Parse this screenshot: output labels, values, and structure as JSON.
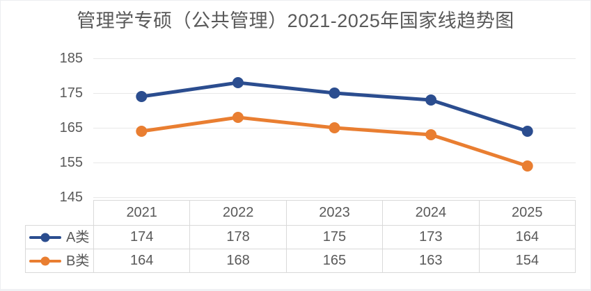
{
  "chart_data": {
    "type": "line",
    "title": "管理学专硕（公共管理）2021-2025年国家线趋势图",
    "categories": [
      "2021",
      "2022",
      "2023",
      "2024",
      "2025"
    ],
    "series": [
      {
        "name": "A类",
        "values": [
          174,
          178,
          175,
          173,
          164
        ],
        "color": "#2B4D8F"
      },
      {
        "name": "B类",
        "values": [
          164,
          168,
          165,
          163,
          154
        ],
        "color": "#E97E31"
      }
    ],
    "xlabel": "",
    "ylabel": "",
    "ylim": [
      145,
      185
    ],
    "yticks": [
      185,
      175,
      165,
      155,
      145
    ],
    "grid": "horizontal",
    "legend_position": "data-table-left",
    "marker": "circle",
    "data_table_shown": true
  },
  "colors": {
    "background": "#FFFFFF",
    "title_text": "#595959",
    "axis_text": "#595959",
    "table_text": "#595959",
    "gridline": "#E8E8E8",
    "table_border": "#D9D9D9",
    "series_a": "#2B4D8F",
    "series_b": "#E97E31"
  }
}
